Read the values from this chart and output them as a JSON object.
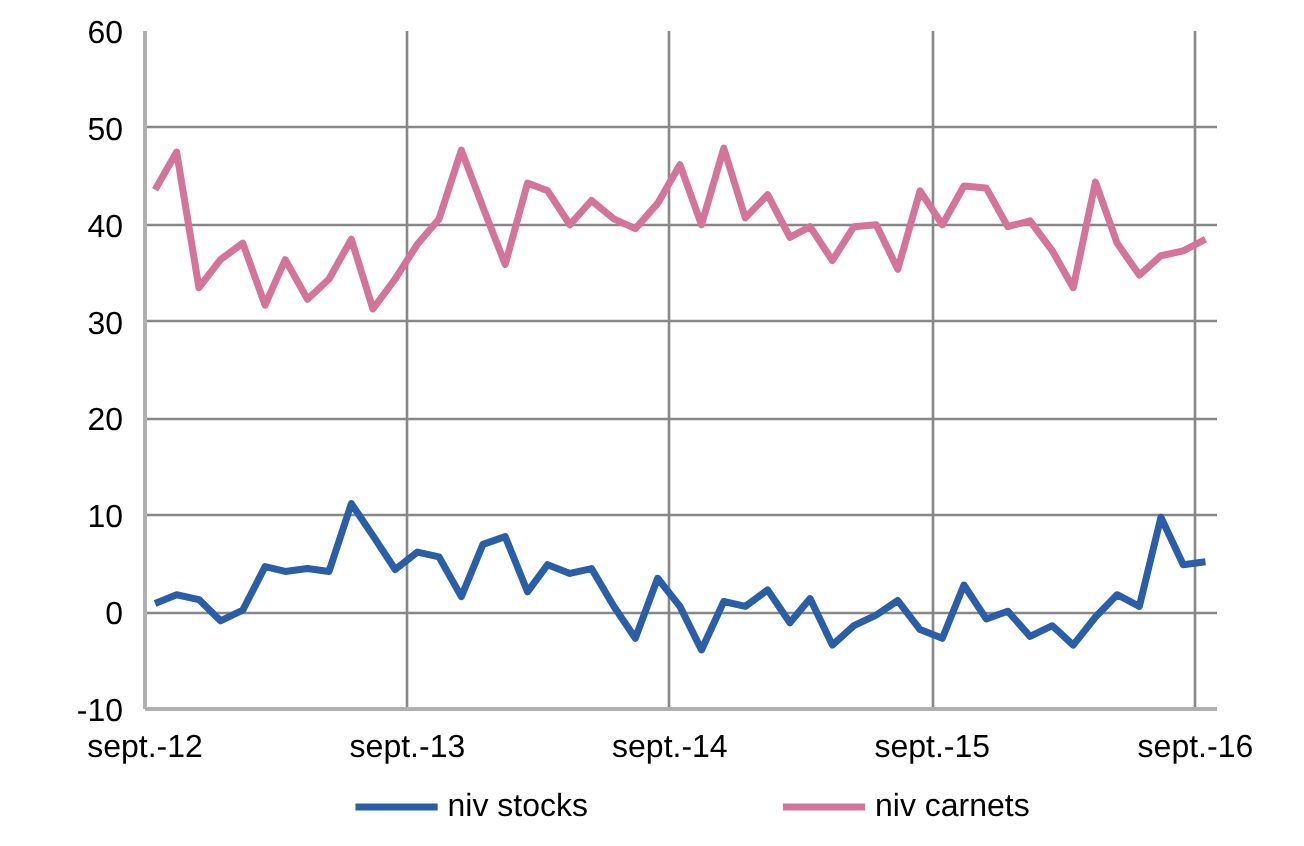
{
  "chart_data": {
    "type": "line",
    "x": [
      "2012-09-15",
      "2012-10-15",
      "2012-11-15",
      "2012-12-15",
      "2013-01-15",
      "2013-02-15",
      "2013-03-15",
      "2013-04-15",
      "2013-05-15",
      "2013-06-15",
      "2013-07-15",
      "2013-08-15",
      "2013-09-15",
      "2013-10-15",
      "2013-11-15",
      "2013-12-15",
      "2014-01-15",
      "2014-02-15",
      "2014-03-15",
      "2014-04-15",
      "2014-05-15",
      "2014-06-15",
      "2014-07-15",
      "2014-08-15",
      "2014-09-15",
      "2014-10-15",
      "2014-11-15",
      "2014-12-15",
      "2015-01-15",
      "2015-02-15",
      "2015-03-15",
      "2015-04-15",
      "2015-05-15",
      "2015-06-15",
      "2015-07-15",
      "2015-08-15",
      "2015-09-15",
      "2015-10-15",
      "2015-11-15",
      "2015-12-15",
      "2016-01-15",
      "2016-02-15",
      "2016-03-15",
      "2016-04-15",
      "2016-05-15",
      "2016-06-15",
      "2016-07-15",
      "2016-08-15",
      "2016-09-15"
    ],
    "series": [
      {
        "name": "niv stocks",
        "color": "#2a5ea8",
        "values": [
          0.9,
          1.8,
          1.3,
          -0.9,
          0.2,
          4.7,
          4.2,
          4.5,
          4.2,
          11.2,
          7.9,
          4.4,
          6.2,
          5.7,
          1.6,
          7.0,
          7.8,
          2.1,
          4.9,
          4.0,
          4.5,
          0.6,
          -2.7,
          3.5,
          0.6,
          -3.9,
          1.1,
          0.6,
          2.3,
          -1.1,
          1.4,
          -3.4,
          -1.4,
          -0.3,
          1.2,
          -1.8,
          -2.7,
          2.8,
          -0.7,
          0.1,
          -2.5,
          -1.4,
          -3.4,
          -0.5,
          1.8,
          0.6,
          9.8,
          4.9,
          5.2
        ]
      },
      {
        "name": "niv carnets",
        "color": "#d4749a",
        "values": [
          43.6,
          47.5,
          33.5,
          36.4,
          38.1,
          31.7,
          36.4,
          32.3,
          34.4,
          38.5,
          31.3,
          34.4,
          38.0,
          40.6,
          47.7,
          41.8,
          35.9,
          44.3,
          43.5,
          40.0,
          42.5,
          40.6,
          39.6,
          42.2,
          46.2,
          40.0,
          47.9,
          40.7,
          43.1,
          38.7,
          39.8,
          36.3,
          39.8,
          40.0,
          35.4,
          43.5,
          40.0,
          44.0,
          43.8,
          39.8,
          40.4,
          37.3,
          33.5,
          44.4,
          38.1,
          34.8,
          36.8,
          37.3,
          38.5
        ]
      }
    ],
    "xlim": [
      "2012-09-01",
      "2016-10-01"
    ],
    "xticks": [
      {
        "value": "2012-09-01",
        "label": "sept.-12"
      },
      {
        "value": "2013-09-01",
        "label": "sept.-13"
      },
      {
        "value": "2014-09-01",
        "label": "sept.-14"
      },
      {
        "value": "2015-09-01",
        "label": "sept.-15"
      },
      {
        "value": "2016-09-01",
        "label": "sept.-16"
      }
    ],
    "ylim": [
      -10,
      60
    ],
    "yticks": [
      -10,
      0,
      10,
      20,
      30,
      40,
      50,
      60
    ],
    "grid": true,
    "legend": "bottom",
    "line_style": "solid",
    "marker": "none"
  }
}
